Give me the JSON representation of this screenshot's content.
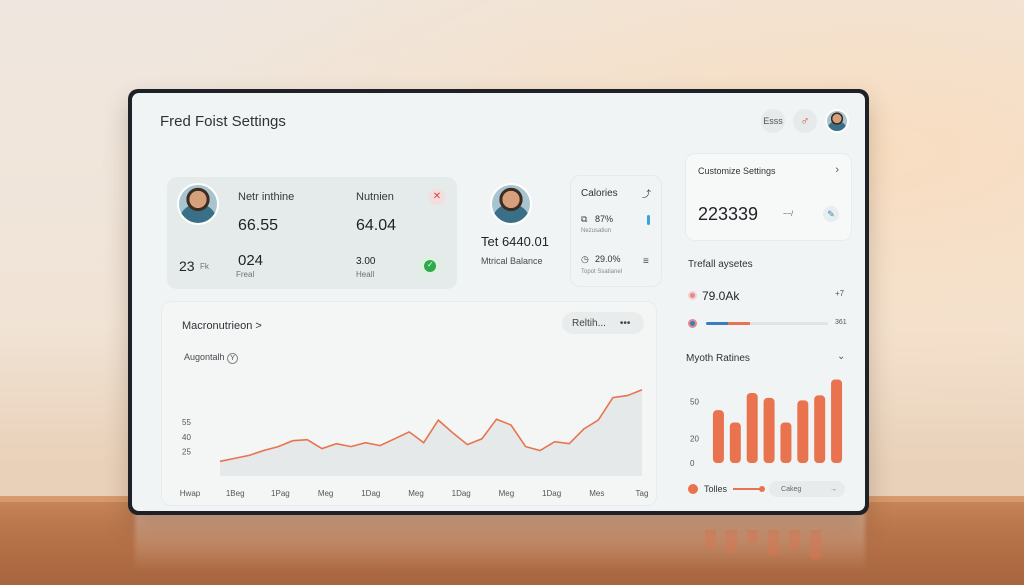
{
  "app": {
    "title": "Fred Foist Settings"
  },
  "header": {
    "icon1": "Esss",
    "icon2": "♂"
  },
  "stats": {
    "label1": "Netr inthine",
    "value1": "66.55",
    "value2": "024",
    "value2_sub": "Freal",
    "label2": "Nutnien",
    "value3": "64.04",
    "value4": "3.00",
    "value4_sub": "Heall",
    "age": "23",
    "age_unit": "Fk"
  },
  "profile": {
    "value": "Tet 6440.01",
    "label": "Mtrical Balance"
  },
  "calories": {
    "title": "Calories",
    "v1": "87%",
    "v1_sub": "Nezusatiun",
    "v2": "29.0%",
    "v2_sub": "Topot Ssatianel"
  },
  "customize": {
    "title": "Customize Settings",
    "value": "223339",
    "unit": "~~/"
  },
  "trend": {
    "title": "Trefall aysetes",
    "value": "79.0Ak",
    "arrow": "+7",
    "bar_value": "361",
    "bar_blue": 0.18,
    "bar_orange": 0.18
  },
  "macro": {
    "title": "Macronutrieon",
    "title_chev": ">",
    "button_label": "Reltih...",
    "button_more": "•••",
    "subtitle": "Augontalh",
    "subtitle_icon": "Y"
  },
  "myth": {
    "title": "Myoth Ratines",
    "legend_label": "Tolles",
    "legend_pill": "Cakeg"
  },
  "colors": {
    "accent": "#e8734e",
    "blue": "#3a7ec2",
    "green": "#2eaa4a"
  },
  "chart_data": [
    {
      "type": "area",
      "title": "Augontalh",
      "categories": [
        "Hwap",
        "1Beg",
        "1Pag",
        "Meg",
        "1Dag",
        "Meg",
        "1Dag",
        "Meg",
        "1Dag",
        "Mes",
        "Tag"
      ],
      "x": [
        0,
        1,
        2,
        3,
        4,
        5,
        6,
        7,
        8,
        9,
        10,
        11,
        12,
        13,
        14,
        15,
        16,
        17,
        18,
        19,
        20,
        21,
        22,
        23,
        24,
        25,
        26,
        27,
        28,
        29
      ],
      "values": [
        15,
        18,
        21,
        26,
        30,
        36,
        37,
        28,
        33,
        30,
        34,
        31,
        38,
        45,
        34,
        57,
        44,
        32,
        38,
        58,
        52,
        30,
        26,
        35,
        33,
        48,
        57,
        80,
        82,
        88
      ],
      "ylim": [
        0,
        100
      ],
      "yticks": [
        25,
        40,
        55
      ]
    },
    {
      "type": "bar",
      "title": "Myoth Ratines",
      "categories": [
        "",
        "",
        "",
        "",
        "",
        "",
        "",
        ""
      ],
      "values": [
        43,
        33,
        57,
        53,
        33,
        51,
        55,
        68
      ],
      "ylim": [
        0,
        70
      ],
      "yticks": [
        0,
        20,
        50
      ],
      "legend": [
        "Tolles"
      ]
    }
  ]
}
